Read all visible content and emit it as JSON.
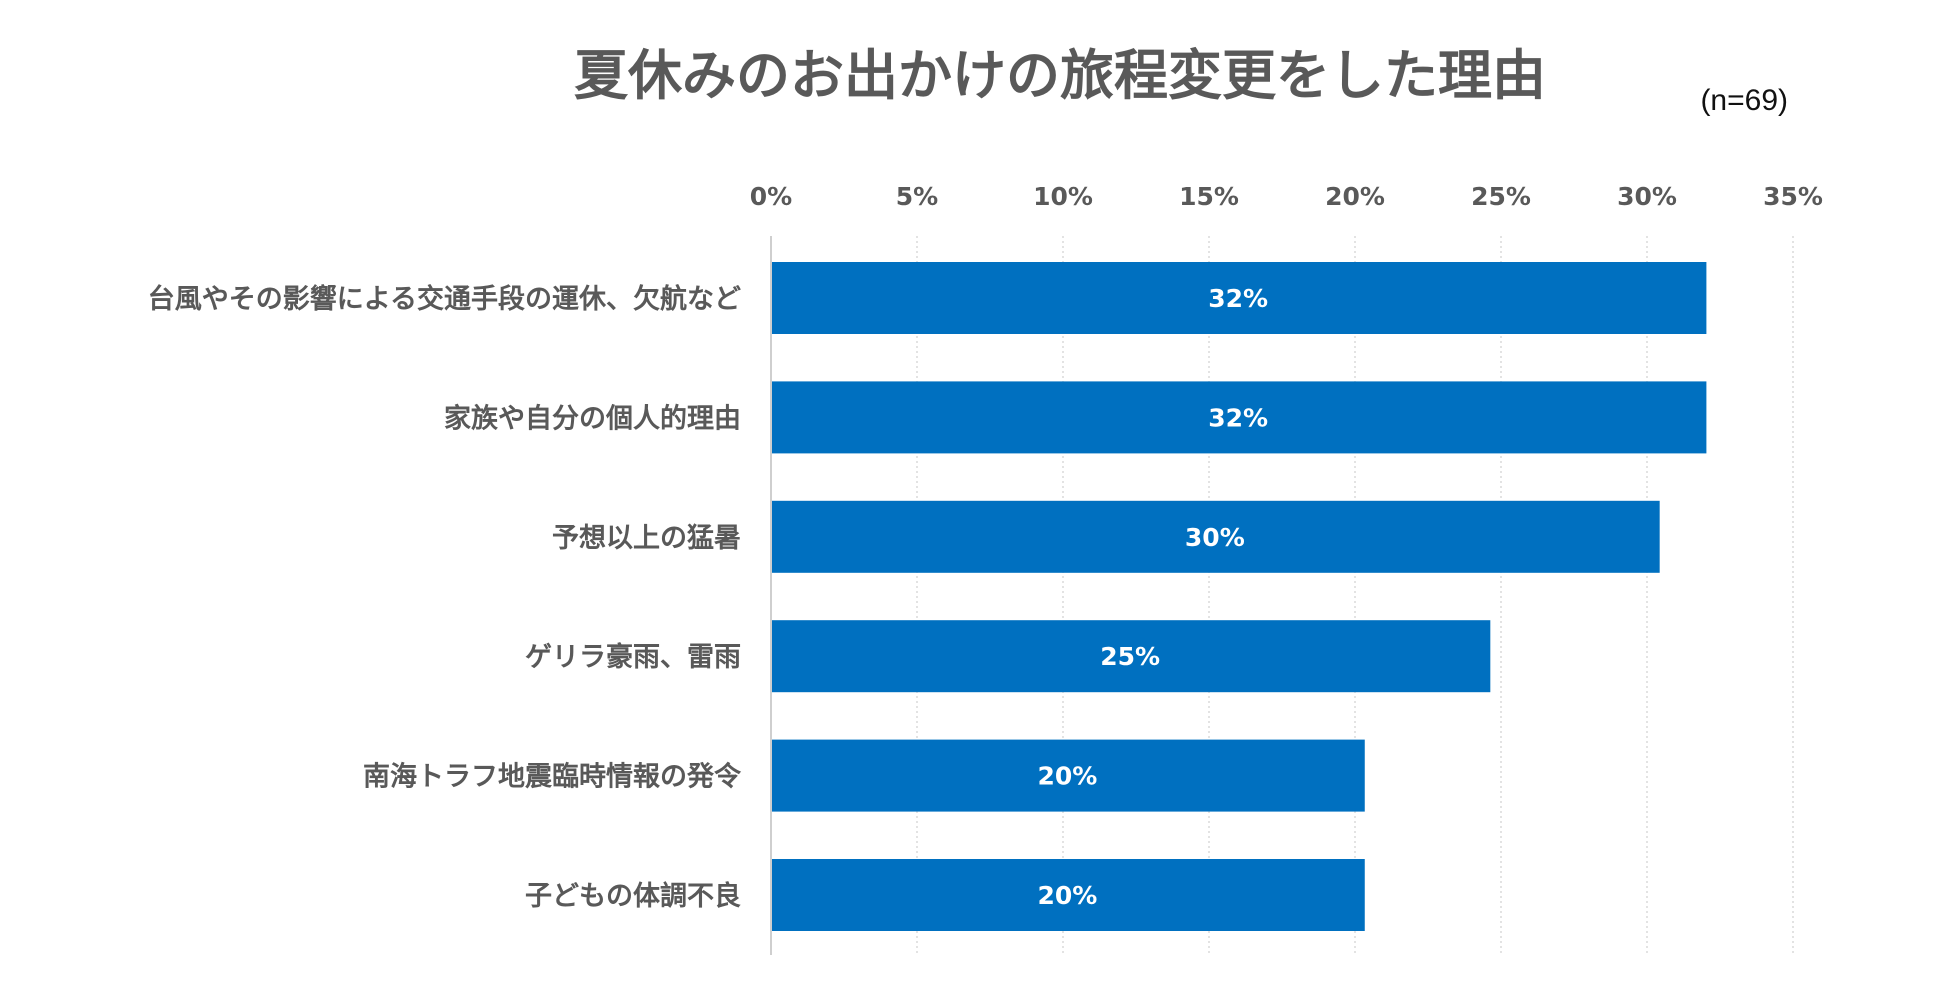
{
  "chart_data": {
    "type": "bar",
    "orientation": "horizontal",
    "title": "夏休みのお出かけの旅程変更をした理由",
    "sample_size_label": "(n=69)",
    "categories": [
      "台風やその影響による交通手段の運休、欠航など",
      "家族や自分の個人的理由",
      "予想以上の猛暑",
      "ゲリラ豪雨、雷雨",
      "南海トラフ地震臨時情報の発令",
      "子どもの体調不良"
    ],
    "values": [
      32,
      32,
      30.4,
      24.6,
      20.3,
      20.3
    ],
    "data_labels": [
      "32%",
      "32%",
      "30%",
      "25%",
      "20%",
      "20%"
    ],
    "xlim": [
      0,
      35
    ],
    "x_ticks": [
      0,
      5,
      10,
      15,
      20,
      25,
      30,
      35
    ],
    "x_tick_labels": [
      "0%",
      "5%",
      "10%",
      "15%",
      "20%",
      "25%",
      "30%",
      "35%"
    ],
    "x_axis_position": "top",
    "grid": "vertical dotted",
    "legend": "none",
    "bar_color": "#0070C0",
    "label_color": "#ffffff"
  }
}
